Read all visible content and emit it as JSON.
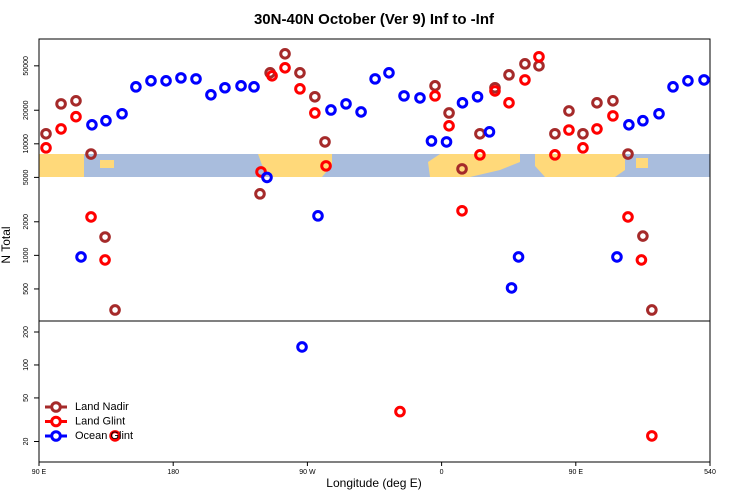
{
  "chart_data": [
    {
      "type": "scatter",
      "title": "30N-40N October (Ver 9)   Inf to -Inf",
      "ylabel": "N Total",
      "log_y": true,
      "xlim": [
        90,
        540
      ],
      "ylim": [
        258,
        87000
      ],
      "yticks": [
        500,
        1000,
        2000,
        5000,
        10000,
        20000,
        50000
      ],
      "series": [
        {
          "name": "Land Nadir",
          "color": "#a52a2a",
          "x": [
            94.7,
            104.8,
            114.8,
            124.9,
            134.3,
            141,
            238.2,
            245,
            255,
            265,
            275,
            281.8,
            355.6,
            365,
            373.7,
            385.7,
            395.8,
            405.2,
            415.9,
            425.3,
            436,
            445.4,
            454.8,
            464.2,
            474.9,
            485,
            495,
            501
          ],
          "values": [
            12300,
            22800,
            24300,
            8100,
            1460,
            324,
            3560,
            43300,
            64100,
            43300,
            26400,
            10400,
            33100,
            18900,
            5960,
            12300,
            31800,
            41500,
            52100,
            50000,
            12300,
            19700,
            12300,
            23300,
            24300,
            8100,
            1490,
            324
          ]
        },
        {
          "name": "Land Glint",
          "color": "#ff0000",
          "x": [
            94.7,
            104.8,
            114.8,
            124.9,
            134.3,
            238.9,
            246.3,
            255,
            265,
            275,
            282.5,
            355.6,
            365,
            373.7,
            385.7,
            395.8,
            405.2,
            415.9,
            425.3,
            436,
            445.4,
            454.8,
            464.2,
            474.9,
            485,
            494
          ],
          "values": [
            9200,
            13600,
            17500,
            2210,
            910,
            5600,
            40700,
            48000,
            31100,
            18900,
            6340,
            26900,
            14500,
            2510,
            7960,
            29800,
            23300,
            37400,
            60300,
            7960,
            13300,
            9200,
            13600,
            17800,
            2210,
            910
          ]
        },
        {
          "name": "Ocean Glint",
          "color": "#0000ff",
          "x": [
            118.2,
            125.5,
            134.9,
            145.7,
            155,
            165.1,
            175.2,
            185.2,
            195.3,
            205.3,
            214.7,
            225.5,
            234.2,
            242.9,
            277.1,
            285.8,
            295.9,
            306,
            315.4,
            324.7,
            334.8,
            345.5,
            353.2,
            363.3,
            374,
            384.1,
            392.1,
            406.9,
            411.6,
            477.6,
            485.6,
            495,
            505.8,
            515.2,
            525.2,
            536
          ],
          "values": [
            968,
            14800,
            16100,
            18600,
            32400,
            36700,
            36700,
            39000,
            38200,
            27500,
            31800,
            33100,
            32400,
            5000,
            2260,
            20100,
            22800,
            19300,
            38200,
            43300,
            26900,
            25800,
            10600,
            10400,
            23300,
            26400,
            12800,
            511,
            968,
            968,
            14800,
            16100,
            18600,
            32400,
            36700,
            37400
          ]
        }
      ]
    },
    {
      "type": "scatter",
      "xlabel": "Longitude (deg E)",
      "log_y": true,
      "legend": "lower left",
      "xlim": [
        90,
        540
      ],
      "ylim": [
        13,
        252
      ],
      "xticks": [
        {
          "value": 90,
          "label": "90 E"
        },
        180,
        {
          "value": 270,
          "label": "90 W"
        },
        {
          "value": 360,
          "label": "0"
        },
        {
          "value": 450,
          "label": "90 E"
        },
        540
      ],
      "yticks": [
        20,
        50,
        100,
        200
      ],
      "series": [
        {
          "color": "#ff0000",
          "x": [
            141,
            332.1,
            501
          ],
          "values": [
            22.5,
            37.5,
            22.5
          ]
        },
        {
          "color": "#0000ff",
          "x": [
            266.4
          ],
          "values": [
            146
          ]
        }
      ]
    }
  ]
}
